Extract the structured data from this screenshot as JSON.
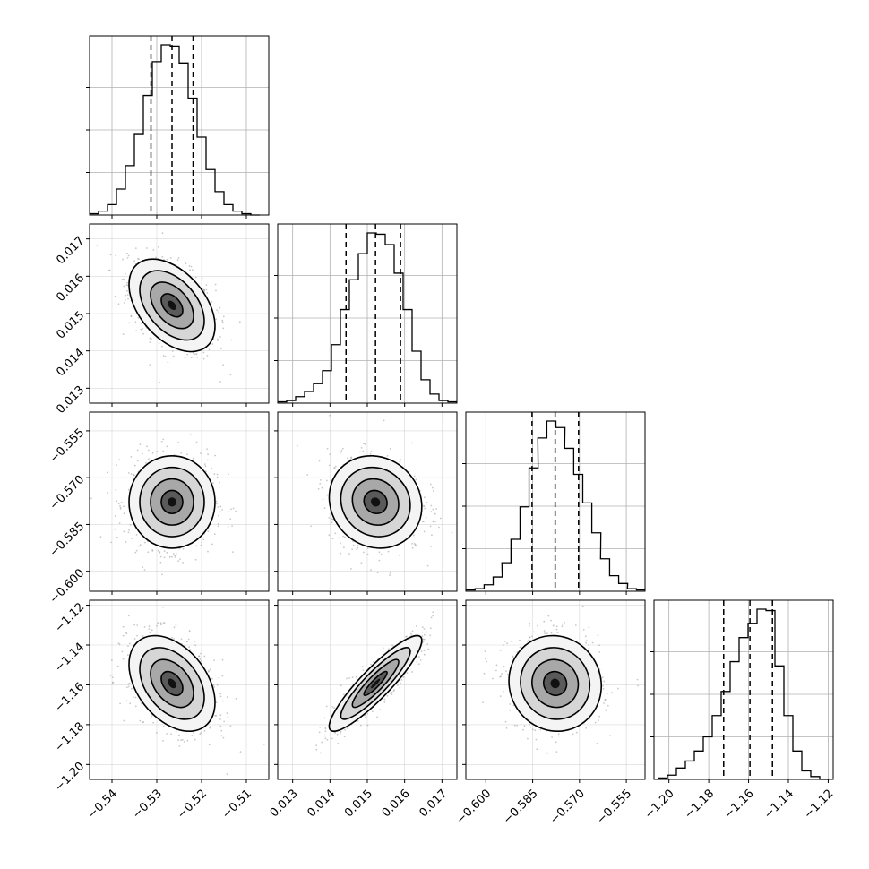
{
  "chart_data": {
    "type": "corner",
    "grid": true,
    "parameters": [
      {
        "range": [
          -0.545,
          -0.505
        ],
        "ticks": [
          "-0.54",
          "-0.53",
          "-0.52",
          "-0.51"
        ],
        "tick_values": [
          -0.54,
          -0.53,
          -0.52,
          -0.51
        ],
        "quantiles": [
          -0.5313,
          -0.5266,
          -0.5219
        ],
        "hist_centers": [
          -0.544,
          -0.542,
          -0.54,
          -0.538,
          -0.536,
          -0.534,
          -0.532,
          -0.53,
          -0.528,
          -0.526,
          -0.524,
          -0.522,
          -0.52,
          -0.518,
          -0.516,
          -0.514,
          -0.512,
          -0.51,
          -0.508
        ],
        "hist_counts": [
          1,
          3,
          8,
          20,
          38,
          62,
          92,
          118,
          131,
          130,
          117,
          90,
          60,
          35,
          18,
          8,
          3,
          1,
          0
        ]
      },
      {
        "range": [
          0.0126,
          0.0174
        ],
        "ticks": [
          "0.013",
          "0.014",
          "0.015",
          "0.016",
          "0.017"
        ],
        "tick_values": [
          0.013,
          0.014,
          0.015,
          0.016,
          0.017
        ],
        "quantiles": [
          0.01443,
          0.01522,
          0.01589
        ],
        "hist_centers": [
          0.01272,
          0.01296,
          0.0132,
          0.01344,
          0.01368,
          0.01392,
          0.01416,
          0.0144,
          0.01464,
          0.01488,
          0.01512,
          0.01536,
          0.0156,
          0.01584,
          0.01608,
          0.01632,
          0.01656,
          0.0168,
          0.01704,
          0.01728
        ],
        "hist_counts": [
          1,
          2,
          5,
          9,
          15,
          25,
          45,
          72,
          95,
          115,
          131,
          130,
          122,
          100,
          72,
          40,
          18,
          7,
          2,
          1
        ]
      },
      {
        "range": [
          -0.6064,
          -0.549
        ],
        "ticks": [
          "-0.600",
          "-0.585",
          "-0.570",
          "-0.555"
        ],
        "tick_values": [
          -0.6,
          -0.585,
          -0.57,
          -0.555
        ],
        "quantiles": [
          -0.5852,
          -0.5778,
          -0.5703
        ],
        "hist_centers": [
          -0.6049,
          -0.602,
          -0.5991,
          -0.5962,
          -0.5934,
          -0.5905,
          -0.5876,
          -0.5847,
          -0.5819,
          -0.579,
          -0.5761,
          -0.5733,
          -0.5704,
          -0.5675,
          -0.5646,
          -0.5618,
          -0.5589,
          -0.556,
          -0.5532,
          -0.5503
        ],
        "hist_counts": [
          1,
          2,
          5,
          11,
          22,
          40,
          65,
          95,
          118,
          131,
          126,
          110,
          90,
          68,
          45,
          25,
          12,
          6,
          2,
          1
        ]
      },
      {
        "range": [
          -1.2075,
          -1.1175
        ],
        "ticks": [
          "-1.20",
          "-1.18",
          "-1.16",
          "-1.14",
          "-1.12"
        ],
        "tick_values": [
          -1.2,
          -1.18,
          -1.16,
          -1.14,
          -1.12
        ],
        "quantiles": [
          -1.1725,
          -1.1593,
          -1.148
        ],
        "hist_centers": [
          -1.203,
          -1.1985,
          -1.194,
          -1.1895,
          -1.185,
          -1.1805,
          -1.176,
          -1.1715,
          -1.167,
          -1.1625,
          -1.158,
          -1.1535,
          -1.149,
          -1.1445,
          -1.14,
          -1.1355,
          -1.131,
          -1.1265,
          -1.122
        ],
        "hist_counts": [
          1,
          3,
          8,
          13,
          20,
          30,
          45,
          62,
          83,
          100,
          110,
          120,
          119,
          80,
          45,
          20,
          6,
          2,
          0
        ]
      }
    ],
    "pairs": [
      {
        "x": 0,
        "y": 1,
        "mean": [
          -0.5266,
          0.01522
        ],
        "std": [
          0.0048,
          0.00062
        ],
        "corr": -0.45
      },
      {
        "x": 0,
        "y": 2,
        "mean": [
          -0.5266,
          -0.5778
        ],
        "std": [
          0.0048,
          0.0074
        ],
        "corr": 0.0
      },
      {
        "x": 1,
        "y": 2,
        "mean": [
          0.01522,
          -0.5778
        ],
        "std": [
          0.00062,
          0.0074
        ],
        "corr": -0.1
      },
      {
        "x": 0,
        "y": 3,
        "mean": [
          -0.5266,
          -1.1593
        ],
        "std": [
          0.0048,
          0.012
        ],
        "corr": -0.4
      },
      {
        "x": 1,
        "y": 3,
        "mean": [
          0.01522,
          -1.1593
        ],
        "std": [
          0.00062,
          0.012
        ],
        "corr": 0.9
      },
      {
        "x": 2,
        "y": 3,
        "mean": [
          -0.5778,
          -1.1593
        ],
        "std": [
          0.0074,
          0.012
        ],
        "corr": -0.05
      }
    ],
    "contour_sigma_levels": [
      0.5,
      1.0,
      1.5,
      2.0
    ],
    "colors": {
      "hist": "#000000",
      "quantile": "#000000",
      "grid": "#b0b0b0",
      "points": "#9a9a9a"
    }
  }
}
